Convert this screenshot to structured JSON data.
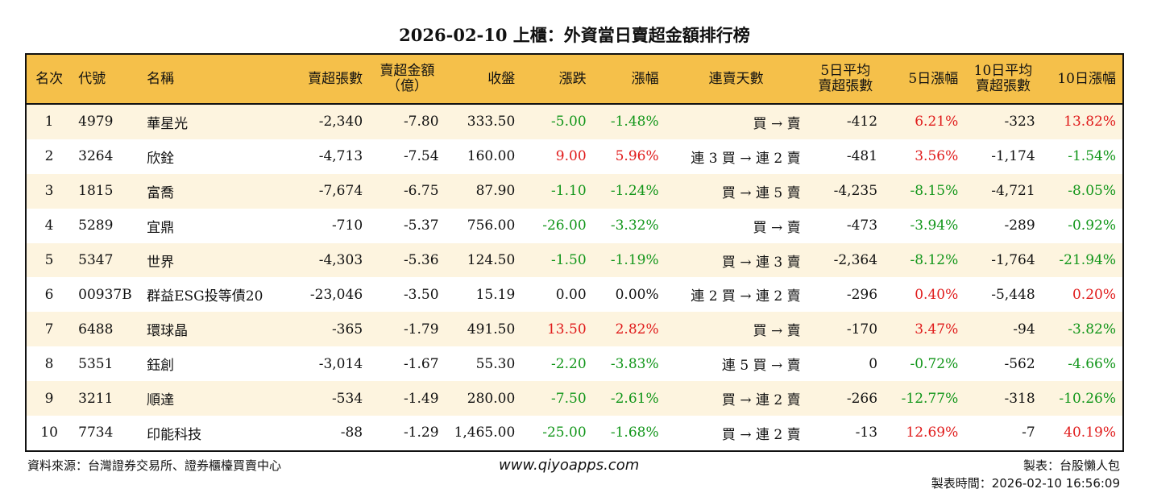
{
  "title": "2026-02-10 上櫃：外資當日賣超金額排行榜",
  "headers": [
    "名次",
    "代號",
    "名稱",
    "賣超張數",
    "賣超金額\n（億）",
    "收盤",
    "漲跌",
    "漲幅",
    "連賣天數",
    "5日平均\n賣超張數",
    "5日漲幅",
    "10日平均\n賣超張數",
    "10日漲幅"
  ],
  "rows": [
    [
      "1",
      "4979",
      "華星光",
      "-2,340",
      "-7.80",
      "333.50",
      "-5.00",
      "-1.48%",
      "買 → 賣",
      "-412",
      "6.21%",
      "-323",
      "13.82%"
    ],
    [
      "2",
      "3264",
      "欣銓",
      "-4,713",
      "-7.54",
      "160.00",
      "9.00",
      "5.96%",
      "連 3 買 → 連 2 賣",
      "-481",
      "3.56%",
      "-1,174",
      "-1.54%"
    ],
    [
      "3",
      "1815",
      "富喬",
      "-7,674",
      "-6.75",
      "87.90",
      "-1.10",
      "-1.24%",
      "買 → 連 5 賣",
      "-4,235",
      "-8.15%",
      "-4,721",
      "-8.05%"
    ],
    [
      "4",
      "5289",
      "宜鼎",
      "-710",
      "-5.37",
      "756.00",
      "-26.00",
      "-3.32%",
      "買 → 賣",
      "-473",
      "-3.94%",
      "-289",
      "-0.92%"
    ],
    [
      "5",
      "5347",
      "世界",
      "-4,303",
      "-5.36",
      "124.50",
      "-1.50",
      "-1.19%",
      "買 → 連 3 賣",
      "-2,364",
      "-8.12%",
      "-1,764",
      "-21.94%"
    ],
    [
      "6",
      "00937B",
      "群益ESG投等債20",
      "-23,046",
      "-3.50",
      "15.19",
      "0.00",
      "0.00%",
      "連 2 買 → 連 2 賣",
      "-296",
      "0.40%",
      "-5,448",
      "0.20%"
    ],
    [
      "7",
      "6488",
      "環球晶",
      "-365",
      "-1.79",
      "491.50",
      "13.50",
      "2.82%",
      "買 → 賣",
      "-170",
      "3.47%",
      "-94",
      "-3.82%"
    ],
    [
      "8",
      "5351",
      "鈺創",
      "-3,014",
      "-1.67",
      "55.30",
      "-2.20",
      "-3.83%",
      "連 5 買 → 賣",
      "0",
      "-0.72%",
      "-562",
      "-4.66%"
    ],
    [
      "9",
      "3211",
      "順達",
      "-534",
      "-1.49",
      "280.00",
      "-7.50",
      "-2.61%",
      "買 → 連 2 賣",
      "-266",
      "-12.77%",
      "-318",
      "-10.26%"
    ],
    [
      "10",
      "7734",
      "印能科技",
      "-88",
      "-1.29",
      "1,465.00",
      "-25.00",
      "-1.68%",
      "買 → 連 2 賣",
      "-13",
      "12.69%",
      "-7",
      "40.19%"
    ]
  ],
  "footer": {
    "source": "資料來源：台灣證券交易所、證券櫃檯買賣中心",
    "url": "www.qiyoapps.com",
    "maker": "製表：台股懶人包",
    "time": "製表時間：2026-02-10 16:56:09"
  },
  "colors": {
    "header": "#f5c04a",
    "row_alt": "#fdf4df",
    "up": "#e01b1b",
    "down": "#12961a"
  }
}
